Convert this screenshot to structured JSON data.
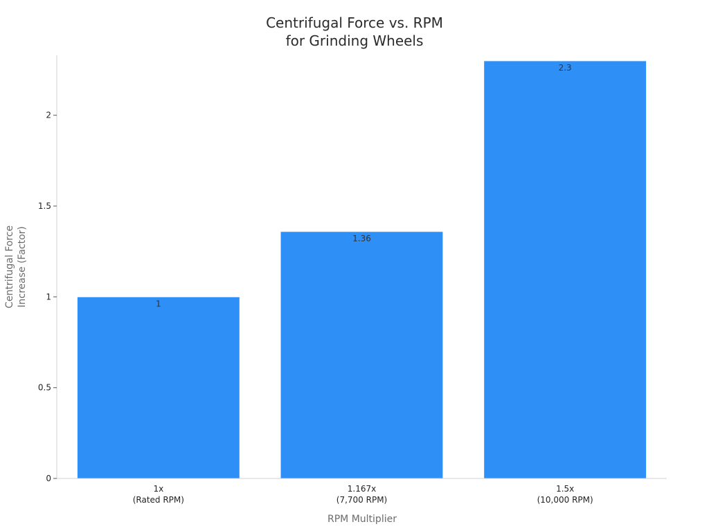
{
  "chart_data": {
    "type": "bar",
    "title_lines": [
      "Centrifugal Force vs. RPM",
      "for Grinding Wheels"
    ],
    "xlabel": "RPM Multiplier",
    "ylabel_lines": [
      "Centrifugal Force",
      "Increase (Factor)"
    ],
    "categories": [
      [
        "1x",
        "(Rated RPM)"
      ],
      [
        "1.167x",
        "(7,700 RPM)"
      ],
      [
        "1.5x",
        "(10,000 RPM)"
      ]
    ],
    "values": [
      1,
      1.36,
      2.3
    ],
    "data_labels": [
      "1",
      "1.36",
      "2.3"
    ],
    "ylim": [
      0,
      2.33
    ],
    "yticks": [
      0,
      0.5,
      1,
      1.5,
      2
    ],
    "ytick_labels": [
      "0",
      "0.5",
      "1",
      "1.5",
      "2"
    ],
    "bar_color": "#2E90F7",
    "grid": false,
    "legend": "none"
  }
}
